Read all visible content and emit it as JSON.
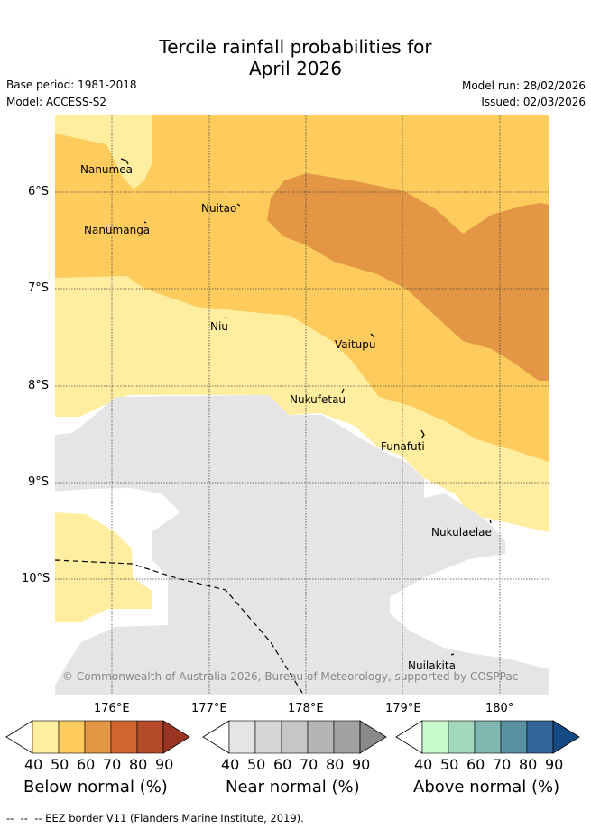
{
  "header": {
    "title_line1": "Tercile rainfall probabilities for",
    "title_line2": "April 2026",
    "base_period": "Base period: 1981-2018",
    "model": "Model: ACCESS-S2",
    "model_run": "Model run: 28/02/2026",
    "issued": "Issued: 02/03/2026"
  },
  "map": {
    "lat_labels": [
      "6°S",
      "7°S",
      "8°S",
      "9°S",
      "10°S"
    ],
    "lon_labels": [
      "176°E",
      "177°E",
      "178°E",
      "179°E",
      "180°"
    ],
    "places": [
      "Nanumea",
      "Nuitao",
      "Nanumanga",
      "Niu",
      "Vaitupu",
      "Nukufetau",
      "Funafuti",
      "Nukulaelae",
      "Nuilakita"
    ],
    "copyright": "© Commonwealth of Australia 2026, Bureau of Meteorology, supported by COSPPac",
    "colors": {
      "below_40_50": "#ffeda0",
      "below_50_60": "#fecc5c",
      "below_60_70": "#e39644",
      "near_40_50": "#e5e5e5",
      "eez_line": "#000000"
    }
  },
  "legend": {
    "ticks": [
      "40",
      "50",
      "60",
      "70",
      "80",
      "90"
    ],
    "below_label": "Below normal (%)",
    "near_label": "Near normal (%)",
    "above_label": "Above normal (%)",
    "below_colors": [
      "#ffeda0",
      "#fecc5c",
      "#e39644",
      "#d16530",
      "#b54b2a",
      "#9c3424"
    ],
    "near_colors": [
      "#e5e5e5",
      "#d6d6d6",
      "#c6c6c6",
      "#b5b5b5",
      "#a2a2a2",
      "#8a8a8a"
    ],
    "above_colors": [
      "#c7fbcd",
      "#a2d9bd",
      "#7fb8b0",
      "#5a91a0",
      "#336599",
      "#154a84"
    ]
  },
  "footer": {
    "eez_note": "--  --  -- EEZ border V11 (Flanders Marine Institute, 2019)."
  }
}
